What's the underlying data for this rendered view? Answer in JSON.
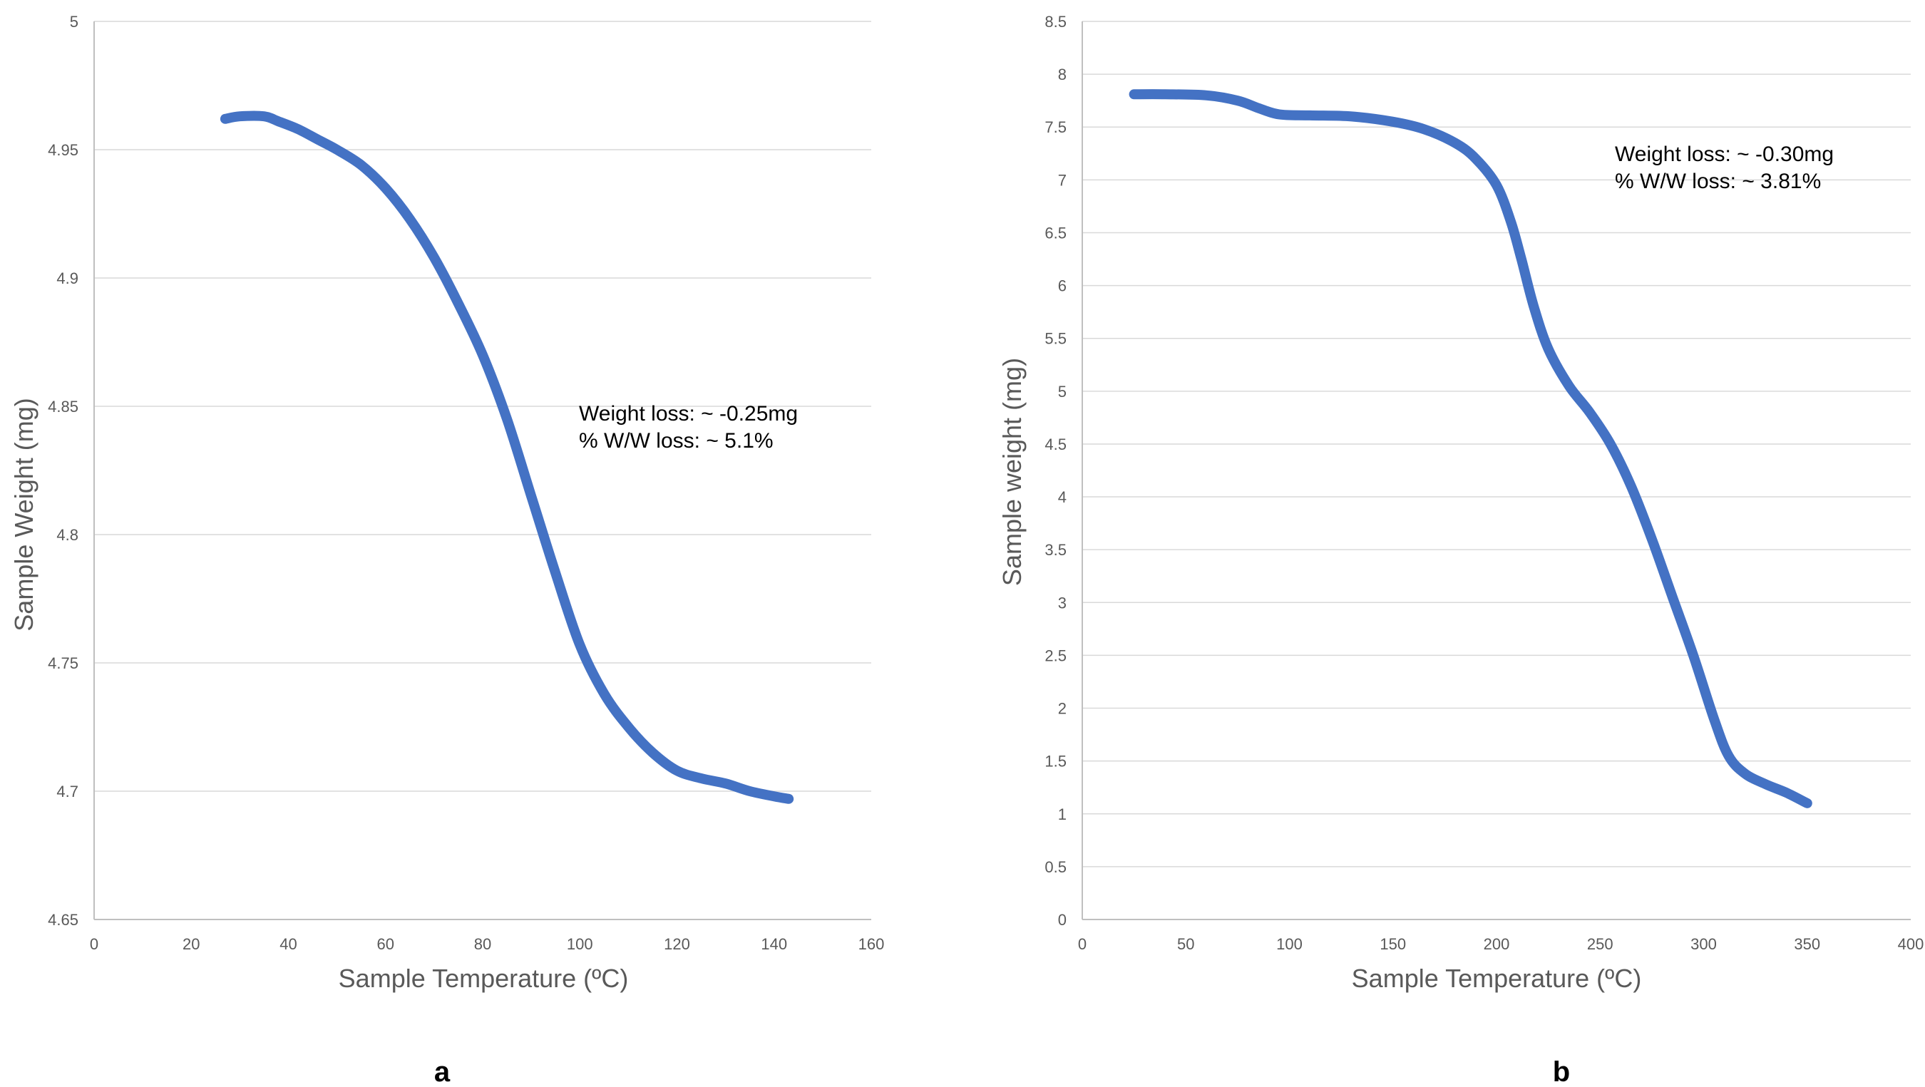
{
  "colors": {
    "series": "#4472C4",
    "grid": "#d9d9d9",
    "axis": "#bfbfbf",
    "text": "#595959"
  },
  "chart_data": [
    {
      "id": "a",
      "type": "line",
      "panel_label": "a",
      "xlabel": "Sample Temperature  (ºC)",
      "ylabel": "Sample Weight (mg)",
      "xlim": [
        0,
        160
      ],
      "ylim": [
        4.65,
        5
      ],
      "xticks": [
        "0",
        "20",
        "40",
        "60",
        "80",
        "100",
        "120",
        "140",
        "160"
      ],
      "yticks": [
        "4.65",
        "4.7",
        "4.75",
        "4.8",
        "4.85",
        "4.9",
        "4.95",
        "5"
      ],
      "grid": "horizontal",
      "annotation": [
        "Weight loss: ~ -0.25mg",
        "% W/W loss: ~ 5.1%"
      ],
      "series": [
        {
          "points": [
            [
              27,
              4.962
            ],
            [
              30,
              4.963
            ],
            [
              35,
              4.963
            ],
            [
              38,
              4.961
            ],
            [
              42,
              4.958
            ],
            [
              46,
              4.954
            ],
            [
              50,
              4.95
            ],
            [
              55,
              4.944
            ],
            [
              60,
              4.935
            ],
            [
              65,
              4.923
            ],
            [
              70,
              4.908
            ],
            [
              75,
              4.89
            ],
            [
              80,
              4.87
            ],
            [
              85,
              4.845
            ],
            [
              90,
              4.815
            ],
            [
              95,
              4.785
            ],
            [
              100,
              4.757
            ],
            [
              105,
              4.738
            ],
            [
              110,
              4.725
            ],
            [
              115,
              4.715
            ],
            [
              120,
              4.708
            ],
            [
              125,
              4.705
            ],
            [
              130,
              4.703
            ],
            [
              135,
              4.7
            ],
            [
              140,
              4.698
            ],
            [
              143,
              4.697
            ]
          ]
        }
      ]
    },
    {
      "id": "b",
      "type": "line",
      "panel_label": "b",
      "xlabel": "Sample Temperature  (ºC)",
      "ylabel": "Sample weight (mg)",
      "xlim": [
        0,
        400
      ],
      "ylim": [
        0,
        8.5
      ],
      "xticks": [
        "0",
        "50",
        "100",
        "150",
        "200",
        "250",
        "300",
        "350",
        "400"
      ],
      "yticks": [
        "0",
        "0.5",
        "1",
        "1.5",
        "2",
        "2.5",
        "3",
        "3.5",
        "4",
        "4.5",
        "5",
        "5.5",
        "6",
        "6.5",
        "7",
        "7.5",
        "8",
        "8.5"
      ],
      "grid": "horizontal",
      "annotation": [
        "Weight loss: ~ -0.30mg",
        "% W/W loss: ~ 3.81%"
      ],
      "series": [
        {
          "points": [
            [
              25,
              7.81
            ],
            [
              40,
              7.81
            ],
            [
              60,
              7.8
            ],
            [
              75,
              7.75
            ],
            [
              85,
              7.68
            ],
            [
              95,
              7.62
            ],
            [
              110,
              7.61
            ],
            [
              130,
              7.6
            ],
            [
              150,
              7.55
            ],
            [
              165,
              7.48
            ],
            [
              180,
              7.35
            ],
            [
              190,
              7.2
            ],
            [
              200,
              6.95
            ],
            [
              207,
              6.6
            ],
            [
              212,
              6.25
            ],
            [
              218,
              5.8
            ],
            [
              225,
              5.4
            ],
            [
              235,
              5.05
            ],
            [
              245,
              4.8
            ],
            [
              255,
              4.5
            ],
            [
              265,
              4.1
            ],
            [
              275,
              3.6
            ],
            [
              285,
              3.05
            ],
            [
              295,
              2.5
            ],
            [
              305,
              1.9
            ],
            [
              312,
              1.55
            ],
            [
              320,
              1.38
            ],
            [
              330,
              1.28
            ],
            [
              340,
              1.2
            ],
            [
              350,
              1.1
            ]
          ]
        }
      ]
    }
  ]
}
